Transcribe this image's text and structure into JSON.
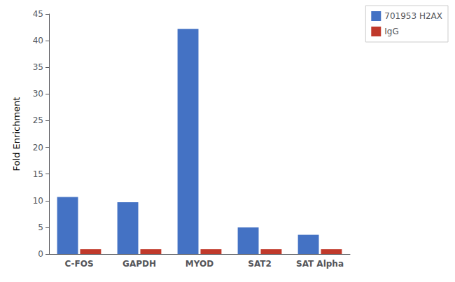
{
  "chart_data": {
    "type": "bar",
    "categories": [
      "C-FOS",
      "GAPDH",
      "MYOD",
      "SAT2",
      "SAT Alpha"
    ],
    "series": [
      {
        "name": "701953 H2AX",
        "color": "#4472C4",
        "values": [
          10.7,
          9.7,
          42.2,
          5.0,
          3.6
        ]
      },
      {
        "name": "IgG",
        "color": "#C0392B",
        "values": [
          0.9,
          0.9,
          0.9,
          0.9,
          0.9
        ]
      }
    ],
    "ylabel": "Fold Enrichment",
    "ylim": [
      0,
      45
    ],
    "yticks": [
      0,
      5,
      10,
      15,
      20,
      25,
      30,
      35,
      40,
      45
    ],
    "grid": false,
    "legend": "upper right"
  }
}
